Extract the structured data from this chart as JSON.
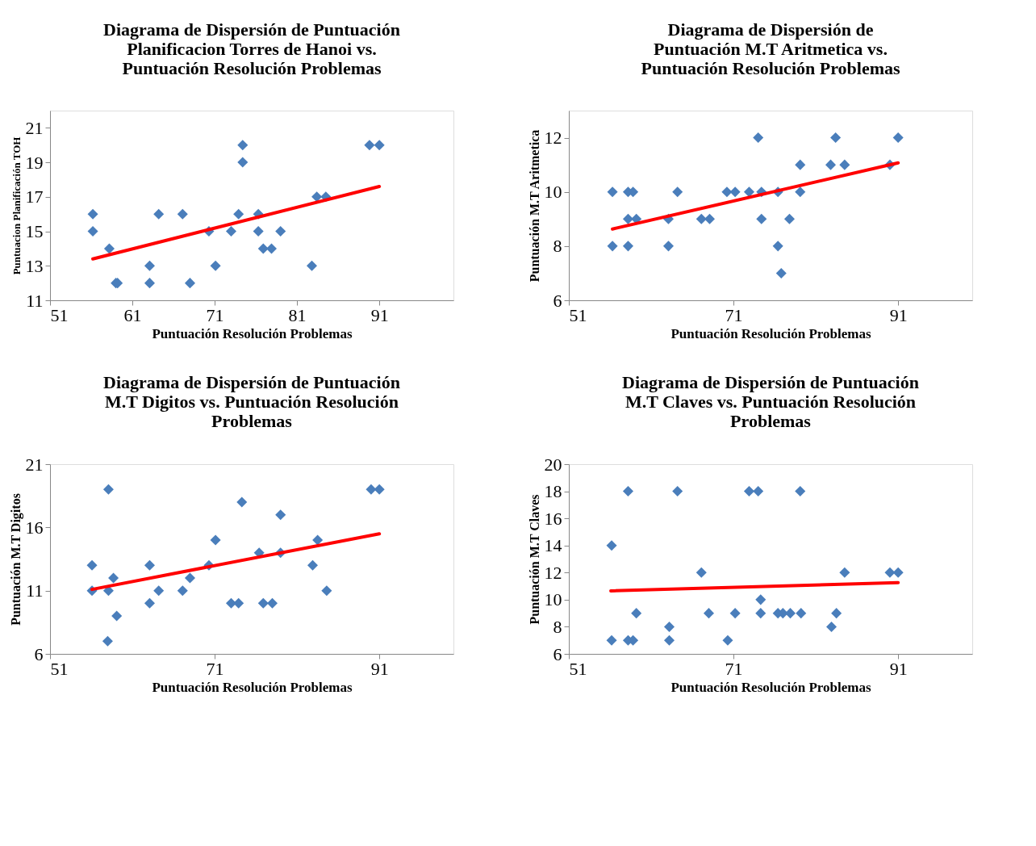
{
  "chart_data": [
    {
      "type": "scatter",
      "title": "Diagrama de Dispersión de Puntuación\nPlanificacion Torres de Hanoi vs.\nPuntuación Resolución Problemas",
      "xlabel": "Puntuación Resolución Problemas",
      "ylabel": "Puntuacion Planificación TOH",
      "xlim": [
        51,
        100
      ],
      "xticks": [
        51,
        61,
        71,
        81,
        91
      ],
      "ylim": [
        11,
        22
      ],
      "yticks": [
        11,
        13,
        15,
        17,
        19,
        21
      ],
      "grid": false,
      "series": [
        {
          "type": "scatter",
          "marker": "diamond",
          "color": "#4a7ebb",
          "x": [
            56.2,
            56.2,
            58.2,
            59,
            59.2,
            63.1,
            63.1,
            64.2,
            67.1,
            68,
            70.3,
            71.1,
            73,
            73.9,
            74.4,
            74.4,
            76.3,
            76.3,
            76.9,
            77.9,
            79,
            82.8,
            83.4,
            84.5,
            89.8,
            91
          ],
          "values": [
            16,
            15,
            14,
            12,
            12,
            13,
            12,
            16,
            16,
            12,
            15,
            13,
            15,
            16,
            20,
            19,
            16,
            15,
            14,
            14,
            15,
            13,
            17,
            17,
            20,
            20
          ]
        },
        {
          "type": "line",
          "color": "#ff0000",
          "x": [
            56.2,
            91
          ],
          "values": [
            13.4,
            17.6
          ]
        }
      ]
    },
    {
      "type": "scatter",
      "title": "Diagrama de Dispersión de\nPuntuación M.T  Aritmetica vs.\nPuntuación Resolución Problemas",
      "xlabel": "Puntuación Resolución Problemas",
      "ylabel": "Puntuación M.T  Aritmetica",
      "xlim": [
        51,
        100
      ],
      "xticks": [
        51,
        71,
        91
      ],
      "ylim": [
        6,
        13
      ],
      "yticks": [
        6,
        8,
        10,
        12
      ],
      "grid": false,
      "series": [
        {
          "type": "scatter",
          "marker": "diamond",
          "color": "#4a7ebb",
          "x": [
            56.3,
            56.3,
            58.2,
            58.2,
            58.2,
            58.8,
            59.2,
            63.1,
            63.1,
            64.2,
            67.1,
            68.1,
            70.2,
            71.2,
            72.9,
            74,
            74.4,
            74.4,
            76.4,
            76.4,
            76.8,
            77.8,
            79.1,
            79.1,
            82.8,
            83.4,
            84.5,
            90,
            91
          ],
          "values": [
            10,
            8,
            10,
            9,
            8,
            10,
            9,
            9,
            8,
            10,
            9,
            9,
            10,
            10,
            10,
            12,
            10,
            9,
            10,
            8,
            7,
            9,
            11,
            10,
            11,
            12,
            11,
            11,
            12
          ]
        },
        {
          "type": "line",
          "color": "#ff0000",
          "x": [
            56.3,
            91
          ],
          "values": [
            8.63,
            11.07
          ]
        }
      ]
    },
    {
      "type": "scatter",
      "title": "Diagrama de Dispersión de Puntuación\nM.T  Digitos  vs. Puntuación Resolución\nProblemas",
      "xlabel": "Puntuación Resolución Problemas",
      "ylabel": "Puntuación  M.T  Digitos",
      "xlim": [
        51,
        100
      ],
      "xticks": [
        51,
        71,
        91
      ],
      "ylim": [
        6,
        21
      ],
      "yticks": [
        6,
        11,
        16,
        21
      ],
      "grid": false,
      "series": [
        {
          "type": "scatter",
          "marker": "diamond",
          "color": "#4a7ebb",
          "x": [
            56.1,
            56.1,
            58.1,
            58.1,
            58.7,
            59.1,
            58,
            63.1,
            63.1,
            64.2,
            67.1,
            68,
            70.3,
            71.1,
            73,
            73.9,
            74.3,
            76.4,
            76.9,
            78,
            79,
            79,
            82.9,
            83.5,
            84.6,
            90,
            91
          ],
          "values": [
            13,
            11,
            19,
            11,
            12,
            9,
            7,
            13,
            10,
            11,
            11,
            12,
            13,
            15,
            10,
            10,
            18,
            14,
            10,
            10,
            14,
            17,
            13,
            15,
            11,
            19,
            19
          ]
        },
        {
          "type": "line",
          "color": "#ff0000",
          "x": [
            56.1,
            91
          ],
          "values": [
            11.1,
            15.5
          ]
        }
      ]
    },
    {
      "type": "scatter",
      "title": "Diagrama de Dispersión de Puntuación\nM.T  Claves vs. Puntuación Resolución\nProblemas",
      "xlabel": "Puntuación Resolución Problemas",
      "ylabel": "Puntuación M.T  Claves",
      "xlim": [
        51,
        100
      ],
      "xticks": [
        51,
        71,
        91
      ],
      "ylim": [
        6,
        20
      ],
      "yticks": [
        6,
        8,
        10,
        12,
        14,
        16,
        18,
        20
      ],
      "grid": false,
      "series": [
        {
          "type": "scatter",
          "marker": "diamond",
          "color": "#4a7ebb",
          "x": [
            56.2,
            56.2,
            58.2,
            58.2,
            58.8,
            59.2,
            63.2,
            63.2,
            64.2,
            67.1,
            68,
            70.3,
            71.2,
            72.9,
            74,
            74.3,
            74.3,
            76.4,
            77,
            77.9,
            79.1,
            79.2,
            82.9,
            83.5,
            84.5,
            90,
            91
          ],
          "values": [
            14,
            7,
            18,
            7,
            7,
            9,
            8,
            7,
            18,
            12,
            9,
            7,
            9,
            18,
            18,
            10,
            9,
            9,
            9,
            9,
            18,
            9,
            8,
            9,
            12,
            12,
            12
          ]
        },
        {
          "type": "line",
          "color": "#ff0000",
          "x": [
            56.1,
            91
          ],
          "values": [
            10.65,
            11.26
          ]
        }
      ]
    }
  ]
}
